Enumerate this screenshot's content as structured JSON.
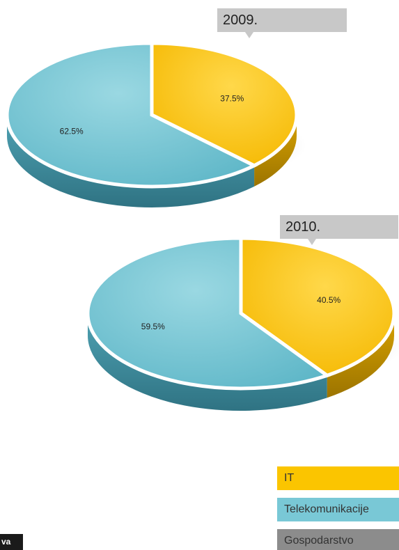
{
  "chart_data": {
    "type": "pie",
    "charts": [
      {
        "title": "2009.",
        "slices": [
          {
            "label": "IT",
            "value": 37.5,
            "text": "37.5%"
          },
          {
            "label": "Telekomunikacije",
            "value": 62.5,
            "text": "62.5%"
          }
        ]
      },
      {
        "title": "2010.",
        "slices": [
          {
            "label": "IT",
            "value": 40.5,
            "text": "40.5%"
          },
          {
            "label": "Telekomunikacije",
            "value": 59.5,
            "text": "59.5%"
          }
        ]
      }
    ],
    "legend": [
      {
        "label": "IT",
        "color": "#fbc500"
      },
      {
        "label": "Telekomunikacije",
        "color": "#79c8d6"
      },
      {
        "label": "Gospodarstvo",
        "color": "#8c8c8c"
      }
    ],
    "legend_placement": "bottom-right",
    "style": "3d"
  },
  "footer": {
    "corner_tag": "va"
  }
}
